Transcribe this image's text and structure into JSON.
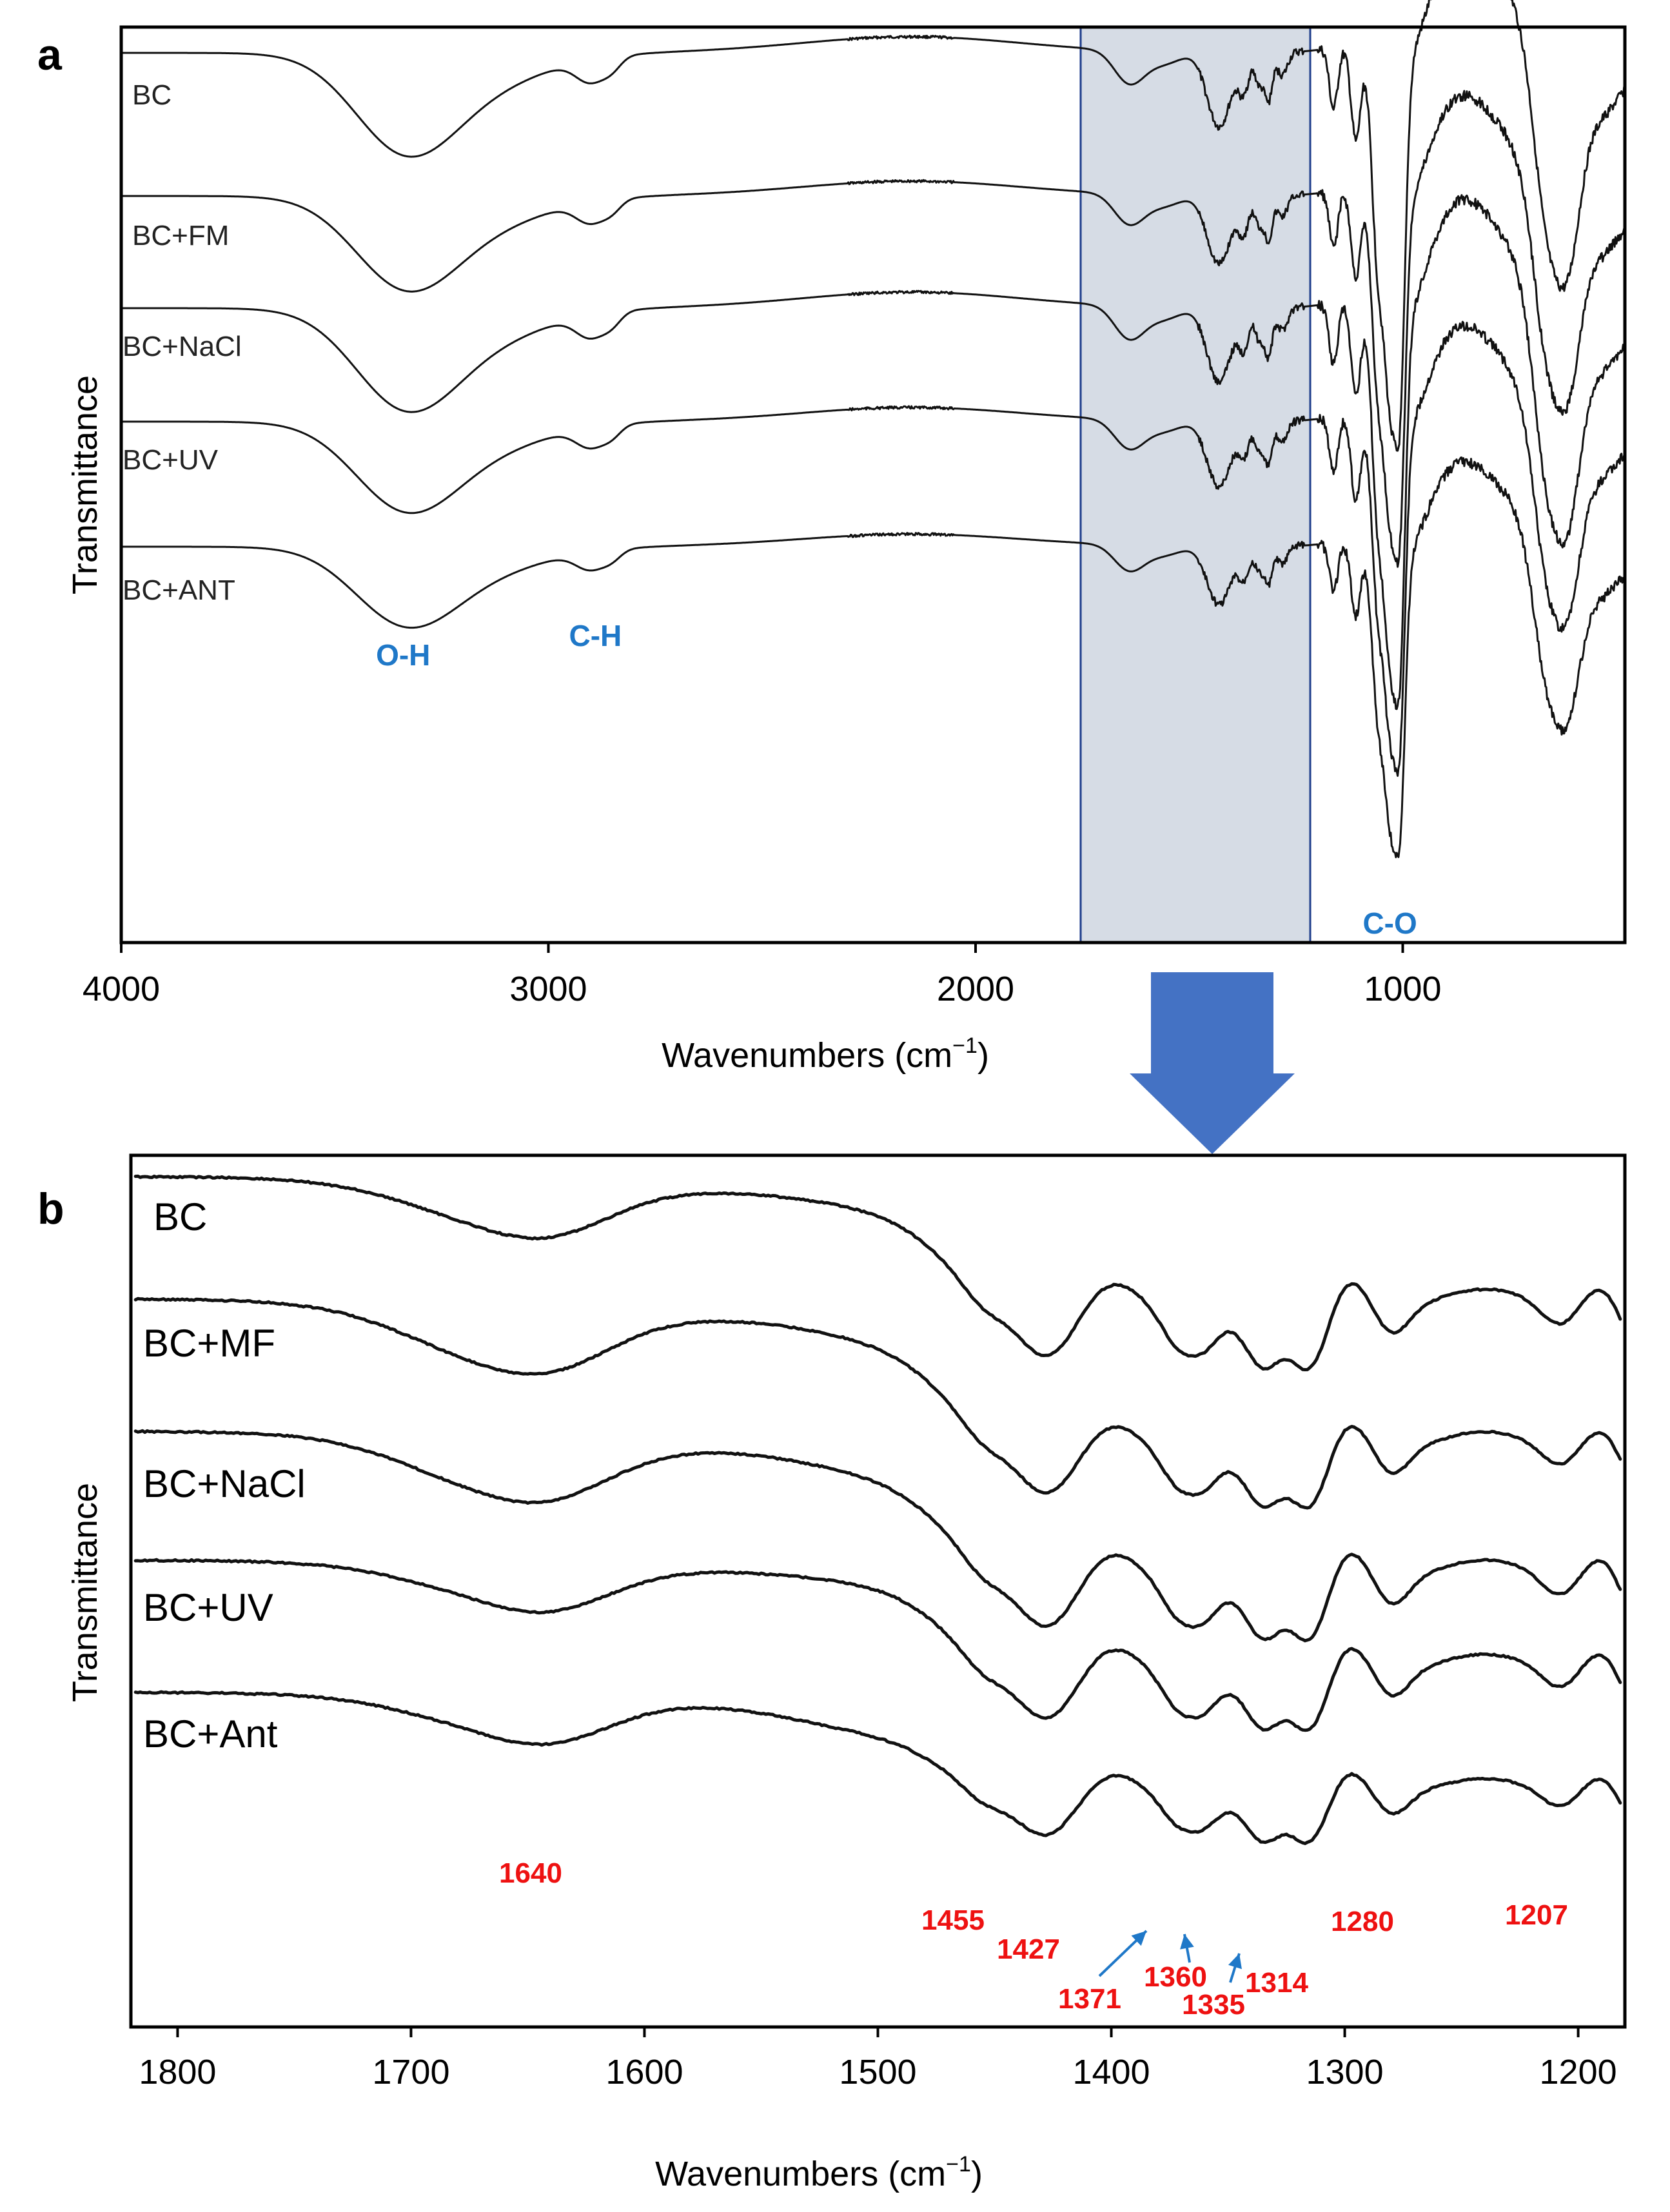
{
  "colors": {
    "spectrum": "#111111",
    "band_label": "#1F78C8",
    "peak_label": "#EE1111",
    "highlight_fill": "#D6DCE5",
    "highlight_border": "#1F3E8C",
    "arrow": "#4472C4",
    "small_arrow": "#1F78C8"
  },
  "chart_data": [
    {
      "panel": "a",
      "type": "line",
      "xlabel": "Wavenumbers (cm",
      "xlabel_sup": "−1",
      "xlabel_close": ")",
      "ylabel": "Transmittance",
      "xlim": [
        4000,
        480
      ],
      "xticks": [
        4000,
        3000,
        2000,
        1000
      ],
      "grid": false,
      "highlight_region": [
        1750,
        1220
      ],
      "series": [
        {
          "name": "BC"
        },
        {
          "name": "BC+FM"
        },
        {
          "name": "BC+NaCl"
        },
        {
          "name": "BC+UV"
        },
        {
          "name": "BC+ANT"
        }
      ],
      "band_labels": [
        {
          "text": "O-H",
          "x": 3340
        },
        {
          "text": "C-H",
          "x": 2890
        },
        {
          "text": "C-O",
          "x": 1030
        }
      ]
    },
    {
      "panel": "b",
      "type": "line",
      "xlabel": "Wavenumbers (cm",
      "xlabel_sup": "−1",
      "xlabel_close": ")",
      "ylabel": "Transmittance",
      "xlim": [
        1820,
        1180
      ],
      "xticks": [
        1800,
        1700,
        1600,
        1500,
        1400,
        1300,
        1200
      ],
      "grid": false,
      "series": [
        {
          "name": "BC"
        },
        {
          "name": "BC+MF"
        },
        {
          "name": "BC+NaCl"
        },
        {
          "name": "BC+UV"
        },
        {
          "name": "BC+Ant"
        }
      ],
      "peak_labels": [
        {
          "text": "1640",
          "x": 1640
        },
        {
          "text": "1455",
          "x": 1455
        },
        {
          "text": "1427",
          "x": 1427
        },
        {
          "text": "1371",
          "x": 1371,
          "arrow": true
        },
        {
          "text": "1360",
          "x": 1360,
          "arrow": true
        },
        {
          "text": "1335",
          "x": 1335,
          "arrow": true
        },
        {
          "text": "1314",
          "x": 1314
        },
        {
          "text": "1280",
          "x": 1280
        },
        {
          "text": "1207",
          "x": 1207
        }
      ]
    }
  ],
  "panels": {
    "a": {
      "letter": "a"
    },
    "b": {
      "letter": "b"
    }
  }
}
